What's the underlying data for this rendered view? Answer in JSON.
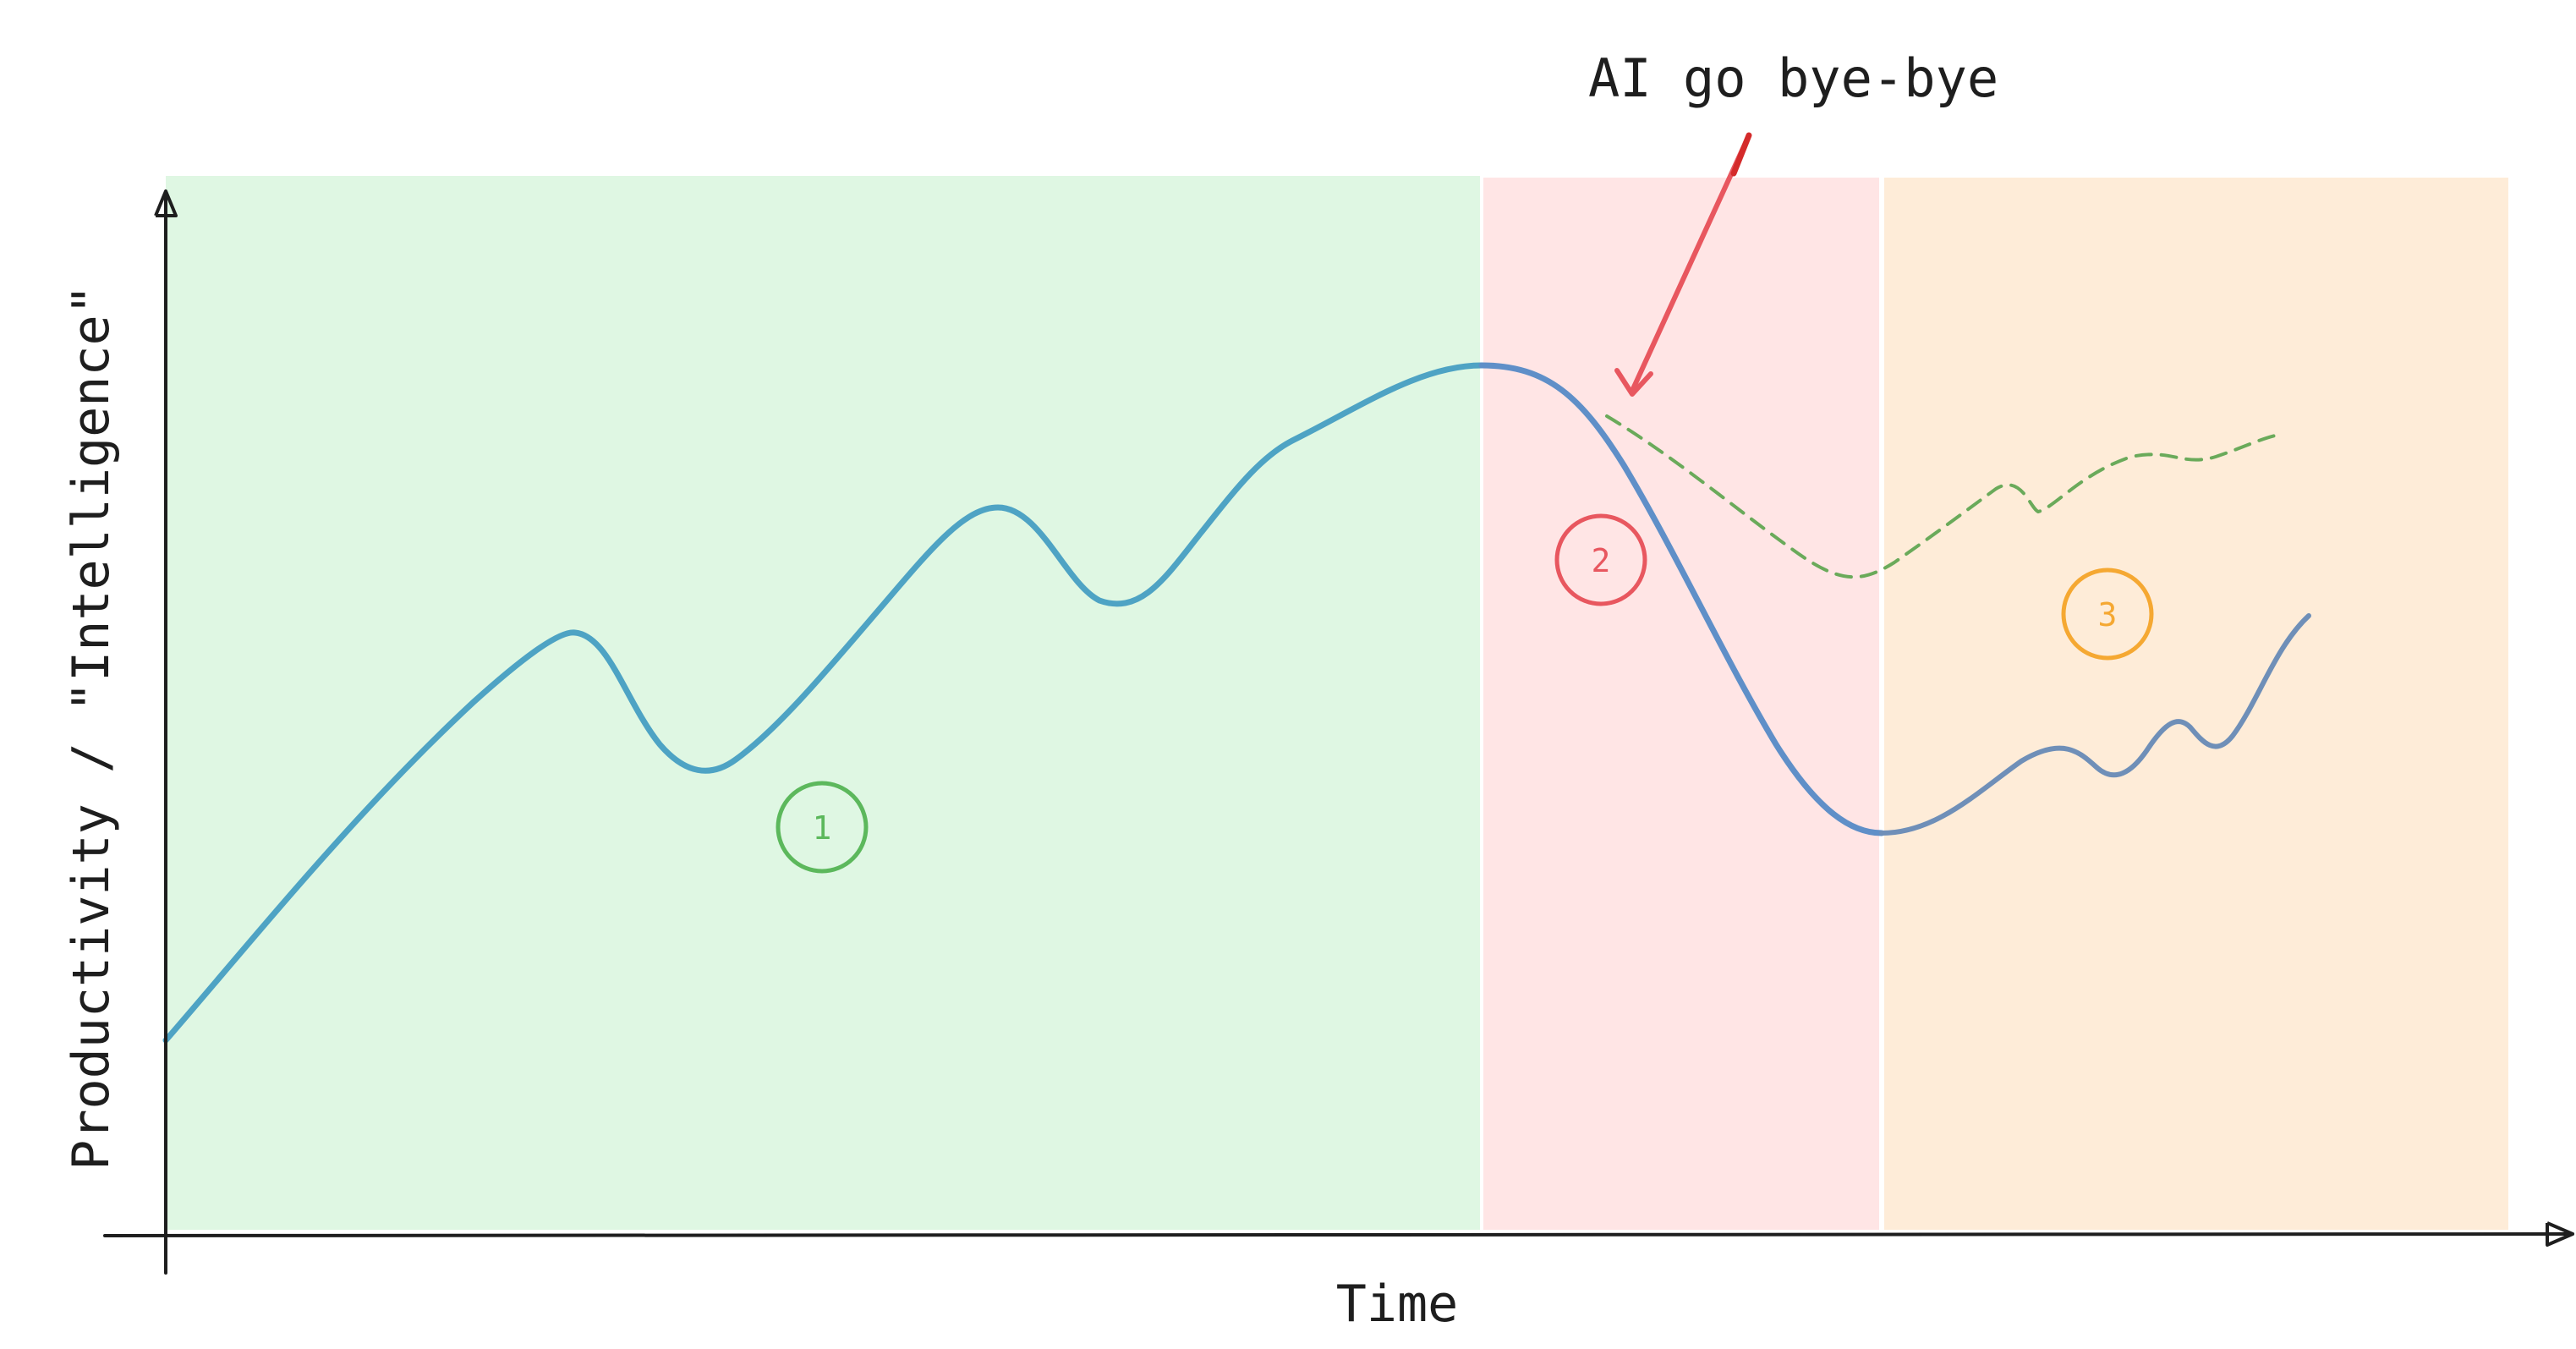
{
  "annotation": {
    "text": "AI go bye-bye",
    "color": "#e03131"
  },
  "axes": {
    "x_label": "Time",
    "y_label": "Productivity / \"Intelligence\""
  },
  "regions": [
    {
      "marker": "1",
      "fill": "#dff7e3",
      "marker_color": "#5cb85c"
    },
    {
      "marker": "2",
      "fill": "#ffe5e5",
      "marker_color": "#e8575f"
    },
    {
      "marker": "3",
      "fill": "#feecd8",
      "marker_color": "#f5a832"
    }
  ],
  "curves": {
    "actual_color": "#4ea3c4",
    "decline_color": "#5f8fc8",
    "counterfactual_color": "#6aaa5a"
  }
}
